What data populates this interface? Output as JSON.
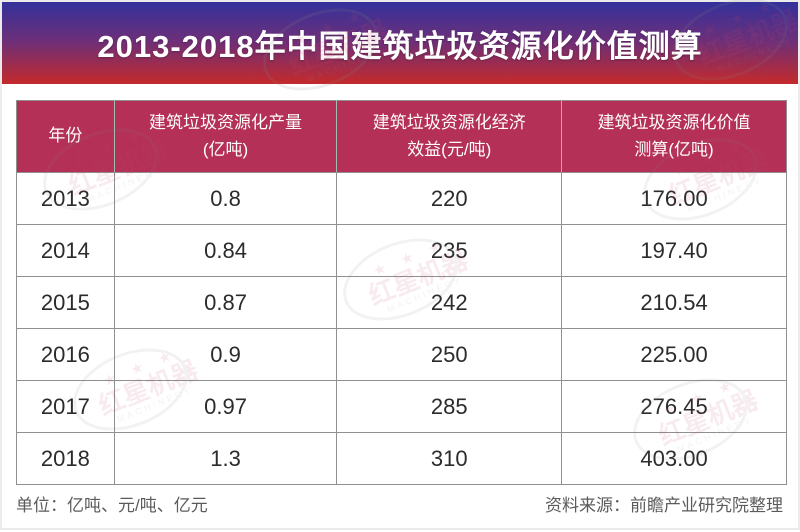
{
  "banner": {
    "title": "2013-2018年中国建筑垃圾资源化价值测算",
    "gradient_top": "#33319B",
    "gradient_bottom": "#C42A2B",
    "text_color": "#ffffff"
  },
  "table": {
    "header_bg": "#B43057",
    "header_text_color": "#ffffff",
    "border_color": "#8f8f8f",
    "columns": [
      "年份",
      "建筑垃圾资源化产量\n(亿吨)",
      "建筑垃圾资源化经济\n效益(元/吨)",
      "建筑垃圾资源化价值\n测算(亿吨)"
    ],
    "rows": [
      [
        "2013",
        "0.8",
        "220",
        "176.00"
      ],
      [
        "2014",
        "0.84",
        "235",
        "197.40"
      ],
      [
        "2015",
        "0.87",
        "242",
        "210.54"
      ],
      [
        "2016",
        "0.9",
        "250",
        "225.00"
      ],
      [
        "2017",
        "0.97",
        "285",
        "276.45"
      ],
      [
        "2018",
        "1.3",
        "310",
        "403.00"
      ]
    ]
  },
  "footer": {
    "units": "单位：亿吨、元/吨、亿元",
    "source": "资料来源：前瞻产业研究院整理"
  },
  "watermark": {
    "stars": "★ ★ ★",
    "brand": "红星机器",
    "brand_en": "MACHINERY"
  },
  "chart_data": {
    "type": "table",
    "title": "2013-2018年中国建筑垃圾资源化价值测算",
    "categories": [
      2013,
      2014,
      2015,
      2016,
      2017,
      2018
    ],
    "series": [
      {
        "name": "建筑垃圾资源化产量(亿吨)",
        "values": [
          0.8,
          0.84,
          0.87,
          0.9,
          0.97,
          1.3
        ]
      },
      {
        "name": "建筑垃圾资源化经济效益(元/吨)",
        "values": [
          220,
          235,
          242,
          250,
          285,
          310
        ]
      },
      {
        "name": "建筑垃圾资源化价值测算(亿吨)",
        "values": [
          176.0,
          197.4,
          210.54,
          225.0,
          276.45,
          403.0
        ]
      }
    ],
    "units_note": "单位：亿吨、元/吨、亿元",
    "source": "资料来源：前瞻产业研究院整理"
  }
}
